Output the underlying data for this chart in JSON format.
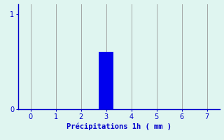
{
  "bar_x": [
    3
  ],
  "bar_height": [
    0.6
  ],
  "bar_color": "#0000ee",
  "bar_width": 0.6,
  "background_color": "#dff5f0",
  "xlim": [
    -0.5,
    7.5
  ],
  "ylim": [
    0,
    1.1
  ],
  "xticks": [
    0,
    1,
    2,
    3,
    4,
    5,
    6,
    7
  ],
  "yticks": [
    0,
    1
  ],
  "xlabel": "Précipitations 1h ( mm )",
  "xlabel_fontsize": 7.5,
  "tick_fontsize": 7,
  "axis_color": "#0000cc",
  "grid_color": "#999999",
  "text_color": "#0000cc",
  "grid_linewidth": 0.6
}
